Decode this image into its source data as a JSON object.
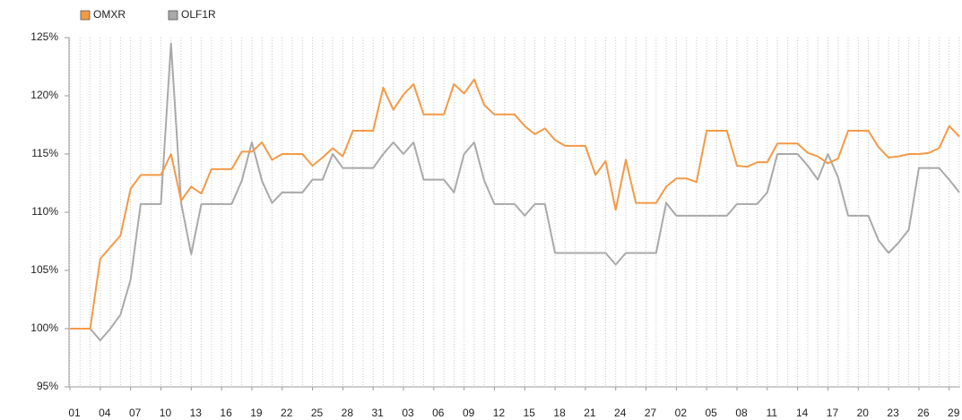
{
  "chart_data": {
    "type": "line",
    "categories": [
      "01",
      null,
      null,
      "04",
      null,
      null,
      "07",
      null,
      null,
      "10",
      null,
      null,
      "13",
      null,
      null,
      "16",
      null,
      null,
      "19",
      null,
      null,
      "22",
      null,
      null,
      "25",
      null,
      null,
      "28",
      null,
      null,
      "31",
      null,
      null,
      "03",
      null,
      null,
      "06",
      null,
      null,
      "09",
      null,
      null,
      "12",
      null,
      null,
      "15",
      null,
      null,
      "18",
      null,
      null,
      "21",
      null,
      null,
      "24",
      null,
      null,
      "27",
      null,
      null,
      "02",
      null,
      null,
      "05",
      null,
      null,
      "08",
      null,
      null,
      "11",
      null,
      null,
      "14",
      null,
      null,
      "17",
      null,
      null,
      "20",
      null,
      null,
      "23",
      null,
      null,
      "26",
      null,
      null,
      "29",
      null
    ],
    "series": [
      {
        "name": "OMXR",
        "color": "#f39a47",
        "values": [
          100,
          100,
          100,
          106,
          107,
          108,
          112,
          113.2,
          113.2,
          113.2,
          115,
          111,
          112.2,
          111.6,
          113.7,
          113.7,
          113.7,
          115.2,
          115.2,
          116,
          114.5,
          115,
          115,
          115,
          114,
          114.7,
          115.5,
          114.8,
          117,
          117,
          117,
          120.7,
          118.8,
          120.1,
          121,
          118.4,
          118.4,
          118.4,
          121,
          120.2,
          121.4,
          119.2,
          118.4,
          118.4,
          118.4,
          117.4,
          116.7,
          117.2,
          116.2,
          115.7,
          115.7,
          115.7,
          113.2,
          114.4,
          110.2,
          114.5,
          110.8,
          110.8,
          110.8,
          112.2,
          112.9,
          112.9,
          112.6,
          117,
          117,
          117,
          114,
          113.9,
          114.3,
          114.3,
          115.9,
          115.9,
          115.9,
          115.1,
          114.8,
          114.2,
          114.6,
          117,
          117,
          117,
          115.6,
          114.7,
          114.8,
          115,
          115,
          115.1,
          115.5,
          117.4,
          116.5
        ]
      },
      {
        "name": "OLF1R",
        "color": "#a9a9a9",
        "values": [
          100,
          100,
          100,
          99,
          100,
          101.2,
          104.2,
          110.7,
          110.7,
          110.7,
          124.5,
          110.8,
          106.4,
          110.7,
          110.7,
          110.7,
          110.7,
          112.7,
          116,
          112.7,
          110.8,
          111.7,
          111.7,
          111.7,
          112.8,
          112.8,
          115,
          113.8,
          113.8,
          113.8,
          113.8,
          115,
          116,
          115,
          116,
          112.8,
          112.8,
          112.8,
          111.7,
          115,
          116,
          112.7,
          110.7,
          110.7,
          110.7,
          109.7,
          110.7,
          110.7,
          106.5,
          106.5,
          106.5,
          106.5,
          106.5,
          106.5,
          105.5,
          106.5,
          106.5,
          106.5,
          106.5,
          110.8,
          109.7,
          109.7,
          109.7,
          109.7,
          109.7,
          109.7,
          110.7,
          110.7,
          110.7,
          111.7,
          115,
          115,
          115,
          114,
          112.8,
          115,
          113,
          109.7,
          109.7,
          109.7,
          107.6,
          106.5,
          107.4,
          108.5,
          113.8,
          113.8,
          113.8,
          112.8,
          111.7
        ]
      }
    ],
    "ylim": [
      95,
      125
    ],
    "yticks": [
      {
        "value": 95,
        "label": "95%"
      },
      {
        "value": 100,
        "label": "100%"
      },
      {
        "value": 105,
        "label": "105%"
      },
      {
        "value": 110,
        "label": "110%"
      },
      {
        "value": 115,
        "label": "115%"
      },
      {
        "value": 120,
        "label": "120%"
      },
      {
        "value": 125,
        "label": "125%"
      }
    ],
    "grid": "x",
    "legend": "top-left"
  }
}
